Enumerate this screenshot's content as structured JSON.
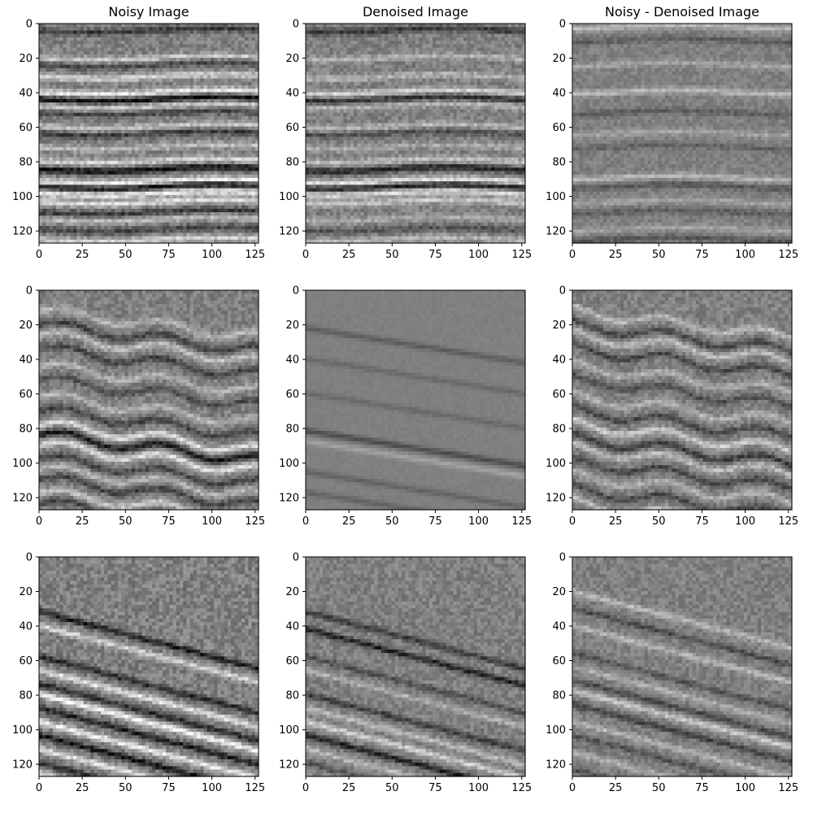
{
  "chart_data": [
    {
      "type": "heatmap",
      "panel": "row1-col1",
      "title": "Noisy Image",
      "colormap": "gray",
      "xlim": [
        0,
        127
      ],
      "ylim": [
        127,
        0
      ],
      "xticks": [
        0,
        25,
        50,
        75,
        100,
        125
      ],
      "yticks": [
        0,
        20,
        40,
        60,
        80,
        100,
        120
      ],
      "image_size": [
        128,
        128
      ],
      "pattern": "horizontal",
      "contrast": 0.9,
      "reflector_depths": [
        4,
        20,
        24,
        31,
        40,
        44,
        48,
        52,
        60,
        64,
        72,
        80,
        85,
        92,
        95,
        99,
        104,
        110,
        114,
        120,
        126
      ],
      "reflector_polarity": [
        -1,
        1,
        -1,
        1,
        1,
        -1,
        1,
        -1,
        1,
        -1,
        1,
        1,
        -1,
        1,
        -1,
        1,
        1,
        -1,
        1,
        -1,
        1
      ],
      "reflector_strength": [
        0.6,
        0.6,
        0.5,
        0.7,
        0.9,
        1.0,
        0.6,
        0.5,
        0.6,
        0.6,
        0.5,
        0.7,
        1.0,
        1.0,
        1.0,
        0.9,
        0.8,
        0.6,
        0.5,
        0.5,
        0.7
      ]
    },
    {
      "type": "heatmap",
      "panel": "row1-col2",
      "title": "Denoised Image",
      "colormap": "gray",
      "xlim": [
        0,
        127
      ],
      "ylim": [
        127,
        0
      ],
      "xticks": [
        0,
        25,
        50,
        75,
        100,
        125
      ],
      "yticks": [
        0,
        20,
        40,
        60,
        80,
        100,
        120
      ],
      "image_size": [
        128,
        128
      ],
      "pattern": "horizontal",
      "contrast": 0.8,
      "reflector_depths": [
        4,
        20,
        31,
        40,
        44,
        48,
        60,
        64,
        72,
        80,
        85,
        92,
        95,
        99,
        104,
        114,
        120,
        126
      ],
      "reflector_polarity": [
        -1,
        1,
        1,
        1,
        -1,
        1,
        1,
        -1,
        1,
        1,
        -1,
        1,
        -1,
        1,
        1,
        1,
        -1,
        1
      ],
      "reflector_strength": [
        0.7,
        0.5,
        0.5,
        0.8,
        0.8,
        0.5,
        0.5,
        0.5,
        0.4,
        0.6,
        0.9,
        1.0,
        1.0,
        0.9,
        0.7,
        0.4,
        0.4,
        0.5
      ]
    },
    {
      "type": "heatmap",
      "panel": "row1-col3",
      "title": "Noisy - Denoised Image",
      "colormap": "gray",
      "xlim": [
        0,
        127
      ],
      "ylim": [
        127,
        0
      ],
      "xticks": [
        0,
        25,
        50,
        75,
        100,
        125
      ],
      "yticks": [
        0,
        20,
        40,
        60,
        80,
        100,
        120
      ],
      "image_size": [
        128,
        128
      ],
      "pattern": "horizontal",
      "contrast": 0.55,
      "reflector_depths": [
        2,
        10,
        24,
        40,
        52,
        64,
        72,
        90,
        95,
        104,
        110,
        120,
        126
      ],
      "reflector_polarity": [
        1,
        -1,
        1,
        1,
        -1,
        1,
        -1,
        1,
        -1,
        1,
        -1,
        1,
        -1
      ],
      "reflector_strength": [
        0.8,
        0.5,
        0.5,
        0.8,
        0.5,
        0.5,
        0.4,
        0.8,
        0.6,
        0.5,
        0.5,
        0.5,
        0.6
      ]
    },
    {
      "type": "heatmap",
      "panel": "row2-col1",
      "colormap": "gray",
      "xlim": [
        0,
        127
      ],
      "ylim": [
        127,
        0
      ],
      "xticks": [
        0,
        25,
        50,
        75,
        100,
        125
      ],
      "yticks": [
        0,
        20,
        40,
        60,
        80,
        100,
        120
      ],
      "image_size": [
        128,
        128
      ],
      "pattern": "wavy",
      "contrast": 0.8,
      "reflector_depths": [
        12,
        20,
        26,
        34,
        44,
        52,
        62,
        70,
        78,
        84,
        90,
        98,
        104,
        110,
        118,
        124
      ],
      "reflector_polarity": [
        1,
        -1,
        1,
        -1,
        1,
        -1,
        1,
        -1,
        1,
        -1,
        1,
        -1,
        1,
        -1,
        1,
        -1
      ],
      "reflector_strength": [
        0.5,
        0.6,
        0.6,
        0.6,
        0.5,
        0.5,
        0.5,
        0.6,
        0.9,
        1.0,
        0.9,
        0.6,
        0.5,
        0.6,
        0.7,
        0.6
      ]
    },
    {
      "type": "heatmap",
      "panel": "row2-col2",
      "colormap": "gray",
      "xlim": [
        0,
        127
      ],
      "ylim": [
        127,
        0
      ],
      "xticks": [
        0,
        25,
        50,
        75,
        100,
        125
      ],
      "yticks": [
        0,
        20,
        40,
        60,
        80,
        100,
        120
      ],
      "image_size": [
        128,
        128
      ],
      "pattern": "dipping",
      "contrast": 0.45,
      "reflector_depths": [
        22,
        40,
        60,
        82,
        88,
        106,
        118
      ],
      "reflector_polarity": [
        -1,
        -1,
        -1,
        -1,
        1,
        -1,
        -1
      ],
      "reflector_strength": [
        0.6,
        0.4,
        0.4,
        0.9,
        0.6,
        0.5,
        0.5
      ]
    },
    {
      "type": "heatmap",
      "panel": "row2-col3",
      "colormap": "gray",
      "xlim": [
        0,
        127
      ],
      "ylim": [
        127,
        0
      ],
      "xticks": [
        0,
        25,
        50,
        75,
        100,
        125
      ],
      "yticks": [
        0,
        20,
        40,
        60,
        80,
        100,
        120
      ],
      "image_size": [
        128,
        128
      ],
      "pattern": "wavy",
      "contrast": 0.75,
      "reflector_depths": [
        12,
        20,
        26,
        34,
        44,
        52,
        62,
        70,
        78,
        86,
        92,
        100,
        108,
        116,
        124
      ],
      "reflector_polarity": [
        1,
        -1,
        1,
        -1,
        1,
        -1,
        1,
        -1,
        1,
        -1,
        1,
        -1,
        1,
        -1,
        1
      ],
      "reflector_strength": [
        0.6,
        0.6,
        0.6,
        0.6,
        0.5,
        0.5,
        0.5,
        0.6,
        0.8,
        0.7,
        0.6,
        0.6,
        0.5,
        0.6,
        0.7
      ]
    },
    {
      "type": "heatmap",
      "panel": "row3-col1",
      "colormap": "gray",
      "xlim": [
        0,
        127
      ],
      "ylim": [
        127,
        0
      ],
      "xticks": [
        0,
        25,
        50,
        75,
        100,
        125
      ],
      "yticks": [
        0,
        20,
        40,
        60,
        80,
        100,
        120
      ],
      "image_size": [
        128,
        128
      ],
      "pattern": "steep",
      "contrast": 0.95,
      "reflector_depths": [
        32,
        40,
        58,
        66,
        74,
        80,
        88,
        96,
        104,
        112,
        120,
        126
      ],
      "reflector_polarity": [
        -1,
        1,
        -1,
        1,
        -1,
        1,
        -1,
        1,
        -1,
        1,
        -1,
        1
      ],
      "reflector_strength": [
        0.8,
        0.7,
        0.7,
        0.8,
        0.7,
        1.0,
        0.8,
        0.9,
        0.9,
        0.8,
        0.7,
        0.8
      ]
    },
    {
      "type": "heatmap",
      "panel": "row3-col2",
      "colormap": "gray",
      "xlim": [
        0,
        127
      ],
      "ylim": [
        127,
        0
      ],
      "xticks": [
        0,
        25,
        50,
        75,
        100,
        125
      ],
      "yticks": [
        0,
        20,
        40,
        60,
        80,
        100,
        120
      ],
      "image_size": [
        128,
        128
      ],
      "pattern": "steep",
      "contrast": 0.75,
      "reflector_depths": [
        32,
        42,
        58,
        66,
        80,
        88,
        96,
        104,
        112,
        120
      ],
      "reflector_polarity": [
        -1,
        -1,
        -1,
        1,
        -1,
        1,
        1,
        -1,
        1,
        -1
      ],
      "reflector_strength": [
        0.7,
        1.0,
        0.5,
        0.5,
        0.7,
        0.6,
        0.8,
        1.0,
        0.6,
        0.5
      ]
    },
    {
      "type": "heatmap",
      "panel": "row3-col3",
      "colormap": "gray",
      "xlim": [
        0,
        127
      ],
      "ylim": [
        127,
        0
      ],
      "xticks": [
        0,
        25,
        50,
        75,
        100,
        125
      ],
      "yticks": [
        0,
        20,
        40,
        60,
        80,
        100,
        120
      ],
      "image_size": [
        128,
        128
      ],
      "pattern": "steep",
      "contrast": 0.7,
      "reflector_depths": [
        20,
        30,
        40,
        56,
        64,
        72,
        78,
        86,
        96,
        104,
        114,
        124
      ],
      "reflector_polarity": [
        1,
        -1,
        1,
        -1,
        1,
        -1,
        1,
        -1,
        1,
        -1,
        1,
        -1
      ],
      "reflector_strength": [
        0.6,
        0.6,
        0.6,
        0.5,
        0.5,
        0.6,
        0.8,
        0.7,
        0.6,
        0.5,
        0.5,
        0.6
      ]
    }
  ]
}
